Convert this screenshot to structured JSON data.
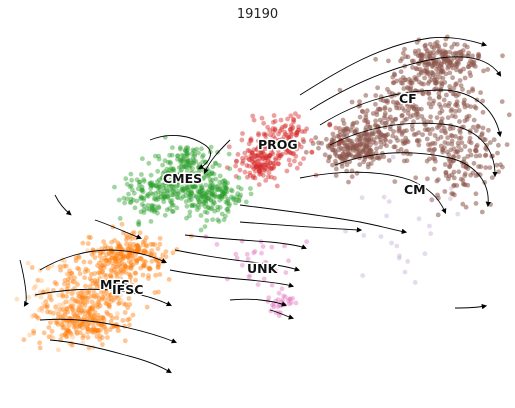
{
  "title": "19190",
  "chart_data": {
    "type": "scatter",
    "title": "19190",
    "xlabel": "",
    "ylabel": "",
    "grid": false,
    "legend": "on data",
    "series": [
      {
        "name": "CF",
        "color": "#8c564b"
      },
      {
        "name": "PROG",
        "color": "#d62728"
      },
      {
        "name": "CMES",
        "color": "#2ca02c"
      },
      {
        "name": "CM",
        "color": "#c5b0d5"
      },
      {
        "name": "MES",
        "color": "#ff7f0e"
      },
      {
        "name": "UNK",
        "color": "#e377c2"
      },
      {
        "name": "IFSC",
        "color": "#ffbb78"
      }
    ],
    "labels": [
      "CF",
      "PROG",
      "CMES",
      "CM",
      "UNK",
      "MES",
      "IFSC"
    ]
  }
}
